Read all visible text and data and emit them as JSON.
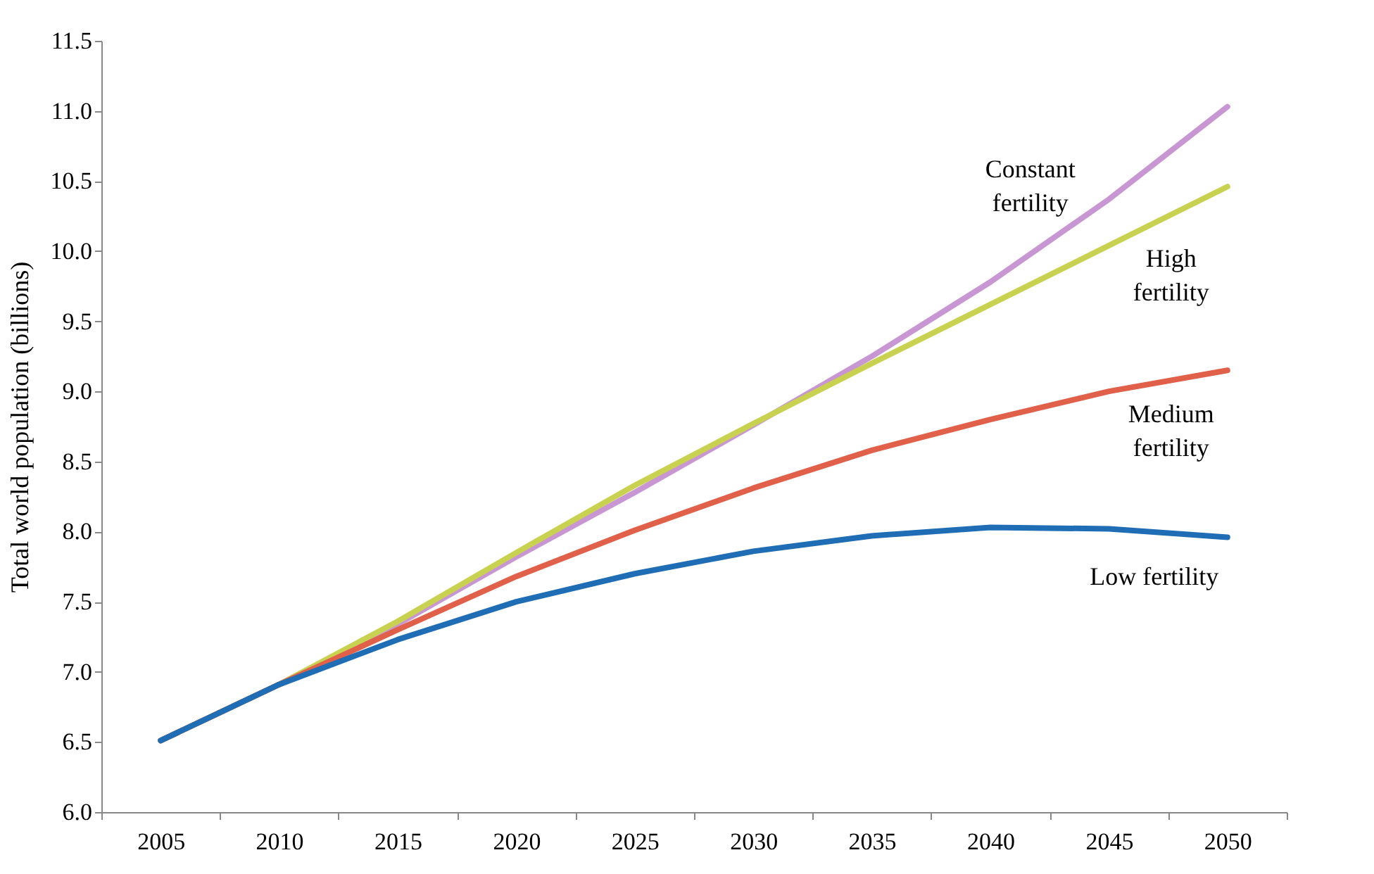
{
  "chart_data": {
    "type": "line",
    "ylabel": "Total world population (billions)",
    "categories": [
      "2005",
      "2010",
      "2015",
      "2020",
      "2025",
      "2030",
      "2035",
      "2040",
      "2045",
      "2050"
    ],
    "ylim": [
      6.0,
      11.5
    ],
    "yticks": [
      {
        "value": 6,
        "label": "6.0"
      },
      {
        "value": 6.5,
        "label": "6.5"
      },
      {
        "value": 7,
        "label": "7.0"
      },
      {
        "value": 7.5,
        "label": "7.5"
      },
      {
        "value": 8,
        "label": "8.0"
      },
      {
        "value": 8.5,
        "label": "8.5"
      },
      {
        "value": 9,
        "label": "9.0"
      },
      {
        "value": 9.5,
        "label": "9.5"
      },
      {
        "value": 10,
        "label": "10.0"
      },
      {
        "value": 10.5,
        "label": "10.5"
      },
      {
        "value": 11,
        "label": "11.0"
      },
      {
        "value": 11.5,
        "label": "11.5"
      }
    ],
    "grid": false,
    "marker": "none",
    "line_style": "solid",
    "series": [
      {
        "name": "Constant fertility",
        "color": "#c896d2",
        "values": [
          6.51,
          6.91,
          7.34,
          7.82,
          8.28,
          8.76,
          9.25,
          9.78,
          10.37,
          11.03
        ]
      },
      {
        "name": "High fertility",
        "color": "#c8d250",
        "values": [
          6.51,
          6.91,
          7.36,
          7.85,
          8.33,
          8.77,
          9.2,
          9.62,
          10.04,
          10.46
        ]
      },
      {
        "name": "Medium fertility",
        "color": "#e0604a",
        "values": [
          6.51,
          6.91,
          7.3,
          7.68,
          8.01,
          8.31,
          8.58,
          8.8,
          9.0,
          9.15
        ]
      },
      {
        "name": "Low fertility",
        "color": "#1f6db5",
        "values": [
          6.51,
          6.91,
          7.23,
          7.5,
          7.7,
          7.86,
          7.97,
          8.03,
          8.02,
          7.96
        ]
      }
    ]
  }
}
